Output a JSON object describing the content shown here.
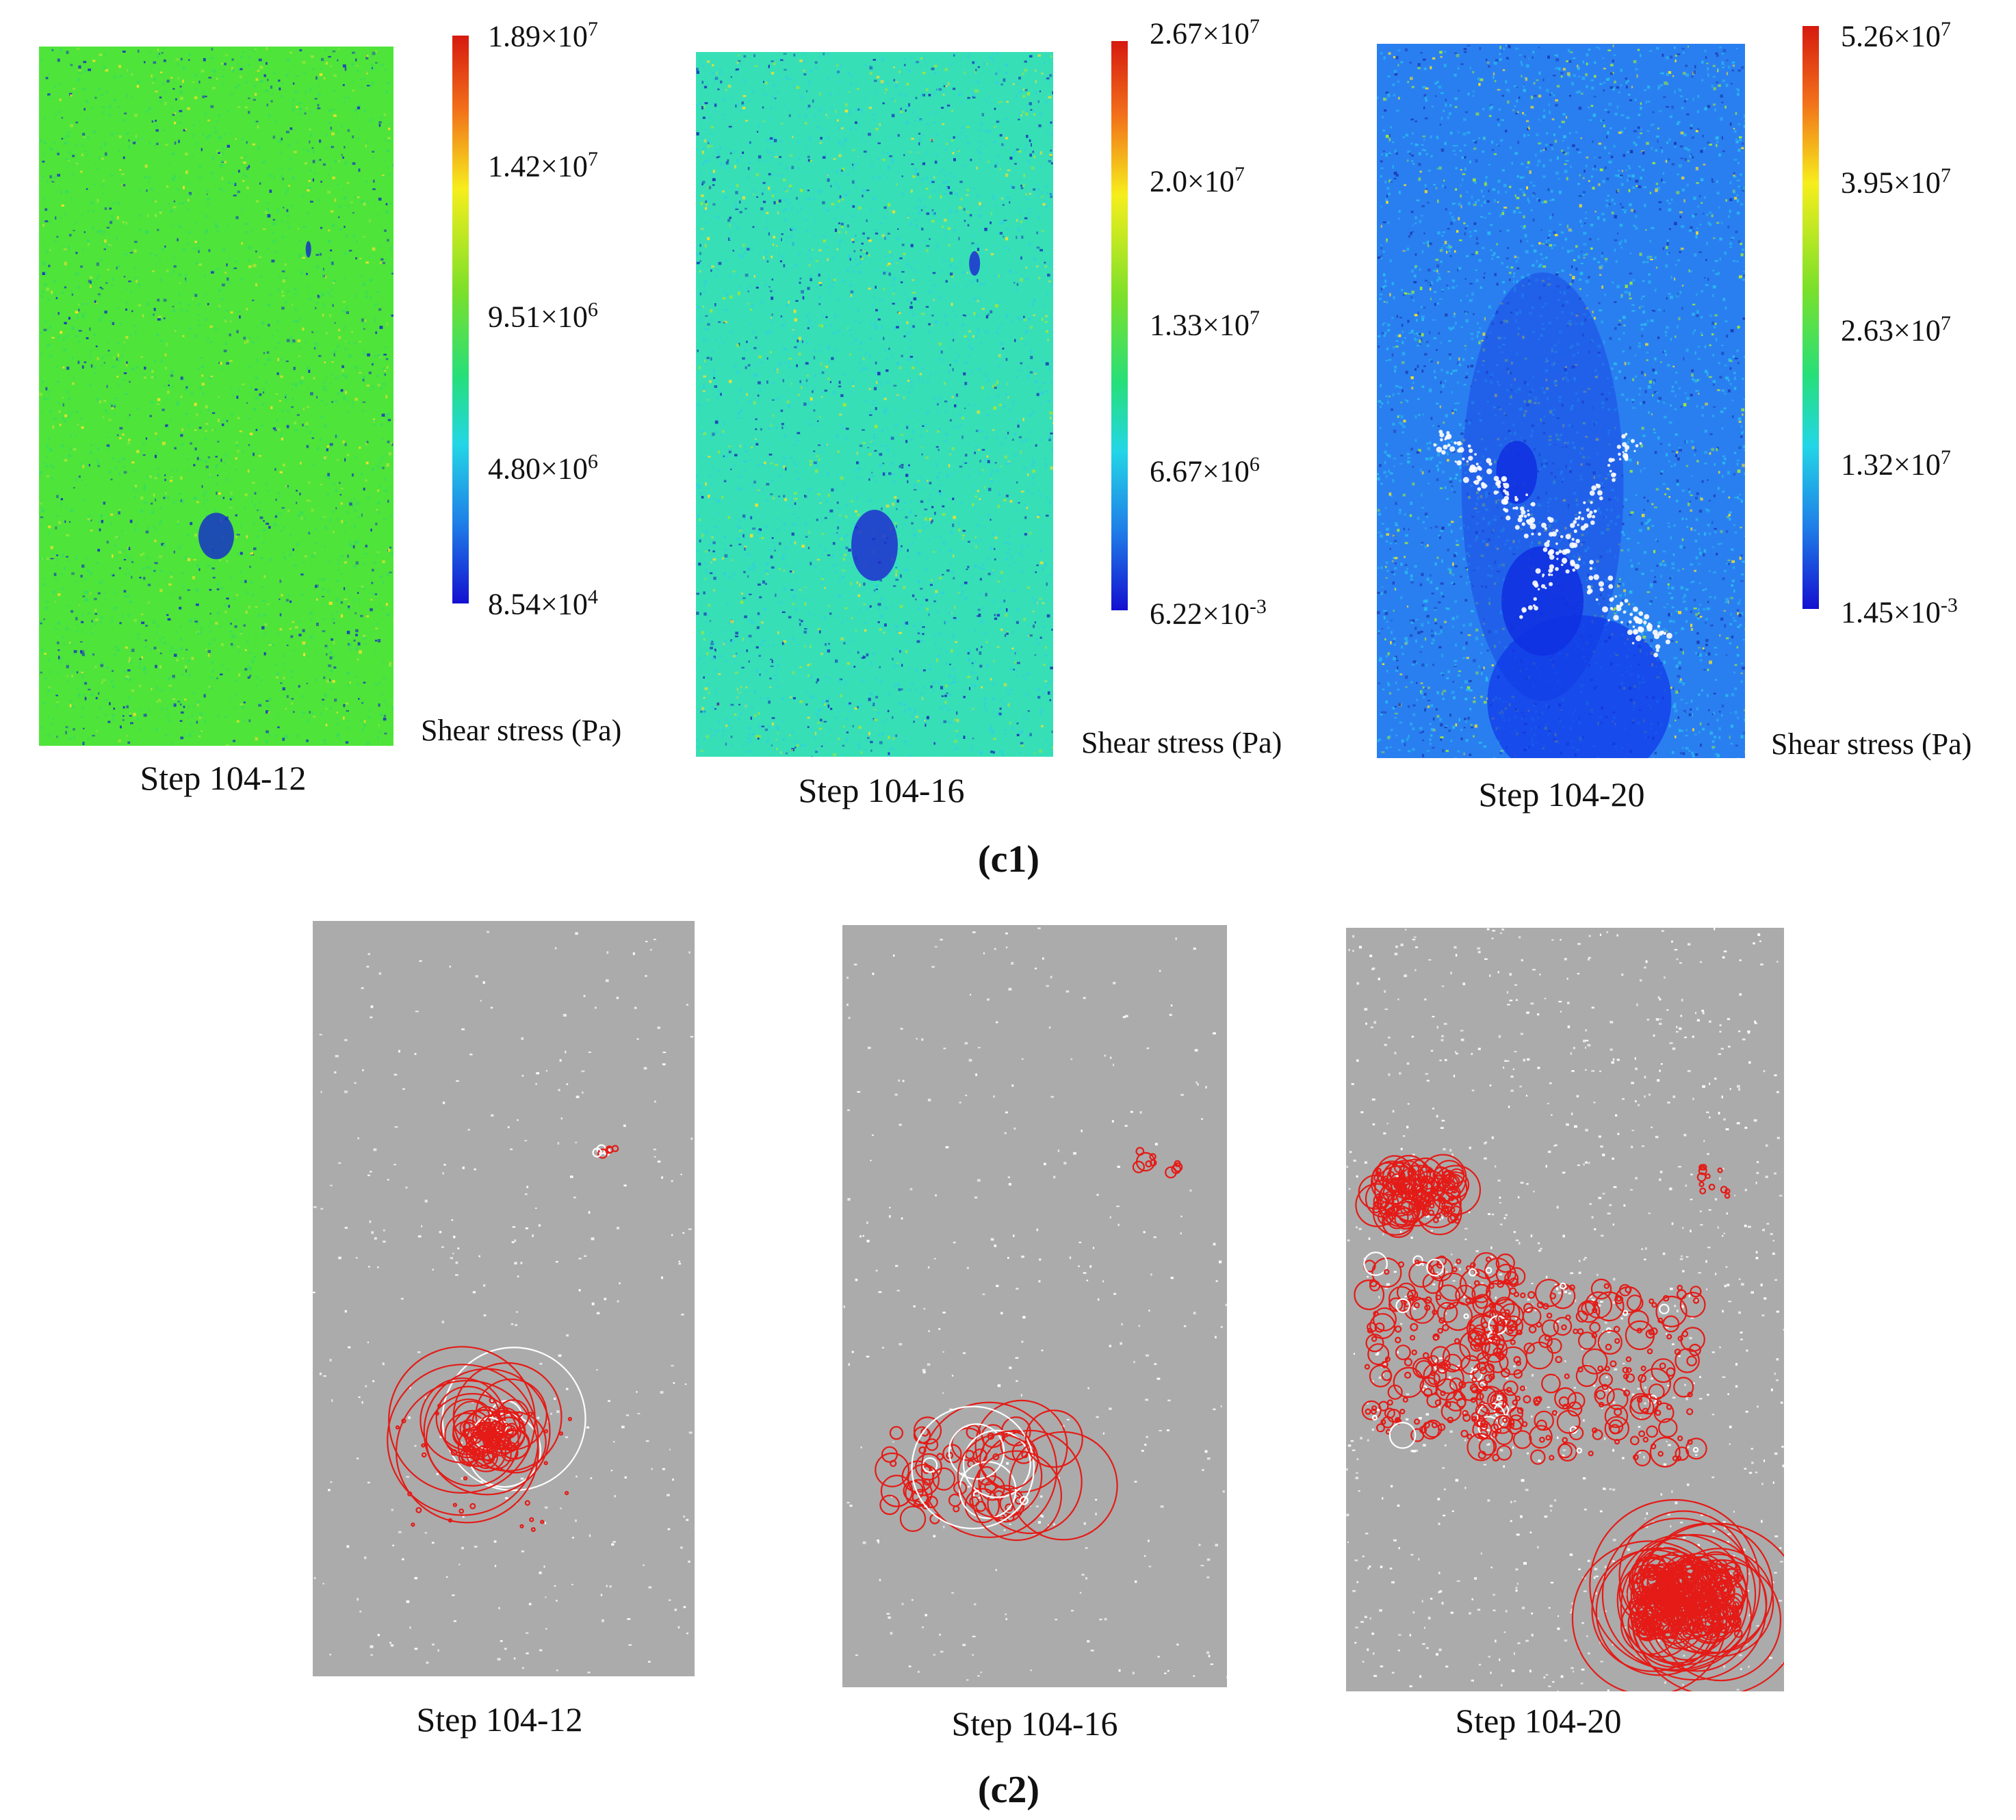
{
  "c1": {
    "label": "(c1)",
    "panels": [
      {
        "step": "Step 104-12",
        "unit": "Shear stress (Pa)",
        "ticks": [
          "1.89×10^7",
          "1.42×10^7",
          "9.51×10^6",
          "4.80×10^6",
          "8.54×10^4"
        ],
        "field": "green",
        "colors": {
          "base": "#4fe43a",
          "alt": "#38dd5c",
          "crack": "#1533c8"
        }
      },
      {
        "step": "Step 104-16",
        "unit": "Shear stress (Pa)",
        "ticks": [
          "2.67×10^7",
          "2.0×10^7",
          "1.33×10^7",
          "6.67×10^6",
          "6.22×10^-3"
        ],
        "field": "cyan",
        "colors": {
          "base": "#37dfb7",
          "alt": "#2fd3d8",
          "crack": "#1f2fd0"
        }
      },
      {
        "step": "Step 104-20",
        "unit": "Shear stress (Pa)",
        "ticks": [
          "5.26×10^7",
          "3.95×10^7",
          "2.63×10^7",
          "1.32×10^7",
          "1.45×10^-3"
        ],
        "field": "blue",
        "colors": {
          "base": "#2a7ff0",
          "alt": "#2ab8ee",
          "crack": "#0e2fe0"
        }
      }
    ]
  },
  "c2": {
    "label": "(c2)",
    "panels": [
      {
        "step": "Step 104-12"
      },
      {
        "step": "Step 104-16"
      },
      {
        "step": "Step 104-20"
      }
    ],
    "colors": {
      "background": "#ababab",
      "events": "#e41b17",
      "highlight": "#ffffff"
    }
  }
}
